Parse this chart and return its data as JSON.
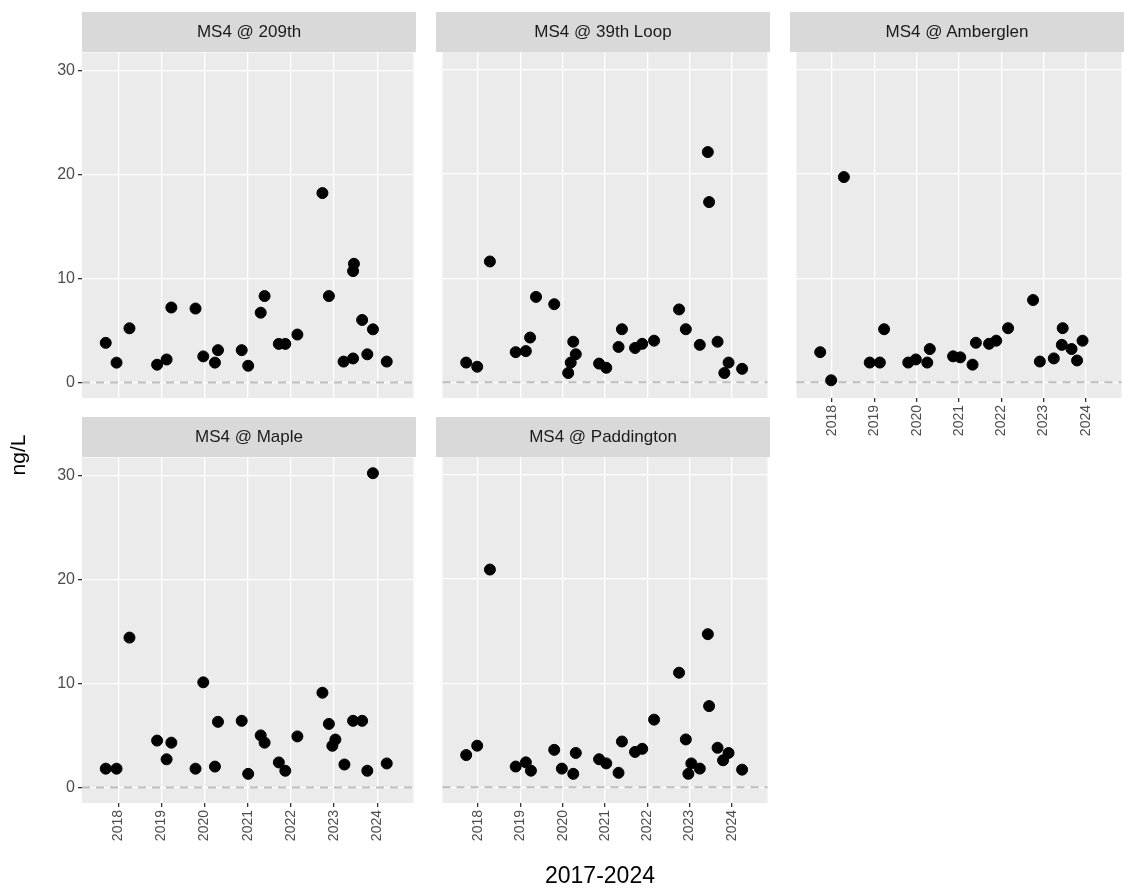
{
  "chart_data": [
    {
      "type": "scatter",
      "title": "MS4 @ 209th",
      "ylabel": null,
      "x": [
        2017.71,
        2017.96,
        2018.26,
        2018.9,
        2019.12,
        2019.23,
        2019.79,
        2019.97,
        2020.24,
        2020.31,
        2020.86,
        2021.01,
        2021.3,
        2021.39,
        2021.72,
        2021.87,
        2022.15,
        2022.73,
        2022.88,
        2023.22,
        2023.44,
        2023.46,
        2023.44,
        2023.65,
        2023.77,
        2023.9,
        2024.22
      ],
      "values": [
        3.8,
        1.9,
        5.2,
        1.7,
        2.2,
        7.2,
        7.1,
        2.5,
        1.9,
        3.1,
        3.1,
        1.6,
        6.7,
        8.3,
        3.7,
        3.7,
        4.6,
        18.2,
        8.3,
        2.0,
        2.3,
        11.4,
        10.7,
        6.0,
        2.7,
        5.1,
        2.0
      ],
      "color": "#000000",
      "marker": "circle",
      "xlim": [
        2017.16,
        2024.84
      ],
      "ylim": [
        -1.5,
        31.7
      ],
      "xticks": [
        2018,
        2019,
        2020,
        2021,
        2022,
        2023,
        2024
      ],
      "yticks": [
        0,
        10,
        20,
        30
      ],
      "grid": true,
      "tick_labels": "y",
      "ref_lines": [
        {
          "axis": "y",
          "value": 0,
          "color": "#bebebe",
          "line_style": "dashed"
        }
      ]
    },
    {
      "type": "scatter",
      "title": "MS4 @ 39th Loop",
      "x": [
        2017.72,
        2017.98,
        2018.28,
        2018.89,
        2019.13,
        2019.23,
        2019.37,
        2019.8,
        2020.25,
        2020.31,
        2020.19,
        2020.13,
        2020.86,
        2021.03,
        2021.32,
        2021.4,
        2021.71,
        2021.88,
        2022.16,
        2022.75,
        2022.91,
        2023.24,
        2023.43,
        2023.46,
        2023.66,
        2023.92,
        2023.82,
        2024.24
      ],
      "values": [
        1.9,
        1.5,
        11.6,
        2.9,
        3.0,
        4.3,
        8.2,
        7.5,
        3.9,
        2.7,
        1.9,
        0.9,
        1.8,
        1.4,
        3.4,
        5.1,
        3.3,
        3.7,
        4.0,
        7.0,
        5.1,
        3.6,
        22.1,
        17.3,
        3.9,
        1.9,
        0.9,
        1.3
      ],
      "color": "#000000",
      "marker": "circle",
      "xlim": [
        2017.16,
        2024.84
      ],
      "ylim": [
        -1.5,
        31.7
      ],
      "xticks": [
        2018,
        2019,
        2020,
        2021,
        2022,
        2023,
        2024
      ],
      "yticks": [
        0,
        10,
        20,
        30
      ],
      "grid": true,
      "tick_labels": false,
      "ref_lines": [
        {
          "axis": "y",
          "value": 0,
          "color": "#bebebe",
          "line_style": "dashed"
        }
      ]
    },
    {
      "type": "scatter",
      "title": "MS4 @ Amberglen",
      "x": [
        2017.72,
        2017.98,
        2018.28,
        2018.89,
        2019.13,
        2019.23,
        2019.8,
        2019.98,
        2020.25,
        2020.31,
        2020.86,
        2021.03,
        2021.32,
        2021.4,
        2021.71,
        2021.88,
        2022.16,
        2022.75,
        2022.91,
        2023.24,
        2023.45,
        2023.43,
        2023.66,
        2023.79,
        2023.92
      ],
      "values": [
        2.9,
        0.2,
        19.7,
        1.9,
        1.9,
        5.1,
        1.9,
        2.2,
        1.9,
        3.2,
        2.5,
        2.4,
        1.7,
        3.8,
        3.7,
        4.0,
        5.2,
        7.9,
        2.0,
        2.3,
        5.2,
        3.6,
        3.2,
        2.1,
        4.0
      ],
      "color": "#000000",
      "marker": "circle",
      "xlim": [
        2017.16,
        2024.84
      ],
      "ylim": [
        -1.5,
        31.7
      ],
      "xticks": [
        2018,
        2019,
        2020,
        2021,
        2022,
        2023,
        2024
      ],
      "yticks": [
        0,
        10,
        20,
        30
      ],
      "grid": true,
      "tick_labels": "x",
      "ref_lines": [
        {
          "axis": "y",
          "value": 0,
          "color": "#bebebe",
          "line_style": "dashed"
        }
      ]
    },
    {
      "type": "scatter",
      "title": "MS4 @ Maple",
      "ylabel": "ng/L",
      "x": [
        2017.71,
        2017.96,
        2018.26,
        2018.9,
        2019.12,
        2019.23,
        2019.79,
        2019.97,
        2020.24,
        2020.31,
        2020.86,
        2021.01,
        2021.3,
        2021.39,
        2021.72,
        2021.87,
        2022.15,
        2022.73,
        2022.88,
        2023.03,
        2022.96,
        2023.24,
        2023.44,
        2023.65,
        2023.77,
        2023.9,
        2024.22
      ],
      "values": [
        1.8,
        1.8,
        14.4,
        4.5,
        2.7,
        4.3,
        1.8,
        10.1,
        2.0,
        6.3,
        6.4,
        1.3,
        5.0,
        4.3,
        2.4,
        1.6,
        4.9,
        9.1,
        6.1,
        4.6,
        4.0,
        2.2,
        6.4,
        6.4,
        1.6,
        30.2,
        2.3
      ],
      "color": "#000000",
      "marker": "circle",
      "xlim": [
        2017.16,
        2024.84
      ],
      "ylim": [
        -1.5,
        31.7
      ],
      "xticks": [
        2018,
        2019,
        2020,
        2021,
        2022,
        2023,
        2024
      ],
      "yticks": [
        0,
        10,
        20,
        30
      ],
      "grid": true,
      "ref_lines": [
        {
          "axis": "y",
          "value": 0,
          "color": "#bebebe",
          "line_style": "dashed"
        }
      ]
    },
    {
      "type": "scatter",
      "title": "MS4 @ Paddington",
      "xlabel": "2017-2024",
      "x": [
        2017.72,
        2017.98,
        2018.28,
        2018.89,
        2019.13,
        2019.25,
        2019.8,
        2019.98,
        2020.25,
        2020.31,
        2020.86,
        2021.03,
        2021.32,
        2021.4,
        2021.71,
        2021.88,
        2022.16,
        2022.75,
        2022.91,
        2022.97,
        2023.04,
        2023.24,
        2023.43,
        2023.46,
        2023.66,
        2023.79,
        2023.92,
        2024.24
      ],
      "values": [
        3.1,
        4.0,
        20.9,
        2.0,
        2.4,
        1.6,
        3.6,
        1.8,
        1.3,
        3.3,
        2.7,
        2.3,
        1.4,
        4.4,
        3.4,
        3.7,
        6.5,
        11.0,
        4.6,
        1.3,
        2.3,
        1.8,
        14.7,
        7.8,
        3.8,
        2.6,
        3.3,
        1.7
      ],
      "color": "#000000",
      "marker": "circle",
      "xlim": [
        2017.16,
        2024.84
      ],
      "ylim": [
        -1.5,
        31.7
      ],
      "xticks": [
        2018,
        2019,
        2020,
        2021,
        2022,
        2023,
        2024
      ],
      "yticks": [
        0,
        10,
        20,
        30
      ],
      "grid": true,
      "tick_labels": "x",
      "ref_lines": [
        {
          "axis": "y",
          "value": 0,
          "color": "#bebebe",
          "line_style": "dashed"
        }
      ]
    }
  ]
}
